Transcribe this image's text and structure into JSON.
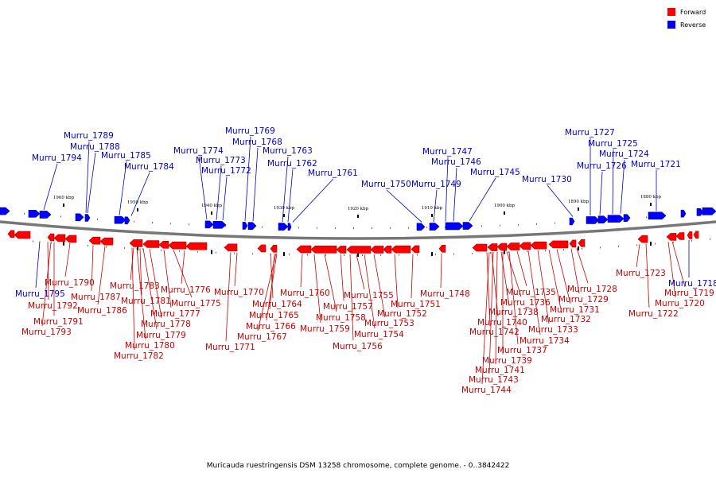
{
  "caption": "Muricauda ruestringensis DSM 13258 chromosome, complete genome. - 0..3842422",
  "legend": [
    {
      "label": "Forward",
      "color": "#ff0000"
    },
    {
      "label": "Reverse",
      "color": "#0000ff"
    }
  ],
  "ticks": [
    "1960 kbp",
    "1950 kbp",
    "1940 kbp",
    "1930 kbp",
    "1920 kbp",
    "1910 kbp",
    "1900 kbp",
    "1890 kbp",
    "1880 kbp"
  ],
  "reverse_genes": [
    {
      "name": "Murru_1794"
    },
    {
      "name": "Murru_1789"
    },
    {
      "name": "Murru_1788"
    },
    {
      "name": "Murru_1785"
    },
    {
      "name": "Murru_1784"
    },
    {
      "name": "Murru_1774"
    },
    {
      "name": "Murru_1773"
    },
    {
      "name": "Murru_1772"
    },
    {
      "name": "Murru_1769"
    },
    {
      "name": "Murru_1768"
    },
    {
      "name": "Murru_1763"
    },
    {
      "name": "Murru_1762"
    },
    {
      "name": "Murru_1761"
    },
    {
      "name": "Murru_1750"
    },
    {
      "name": "Murru_1749"
    },
    {
      "name": "Murru_1747"
    },
    {
      "name": "Murru_1746"
    },
    {
      "name": "Murru_1745"
    },
    {
      "name": "Murru_1730"
    },
    {
      "name": "Murru_1727"
    },
    {
      "name": "Murru_1726"
    },
    {
      "name": "Murru_1725"
    },
    {
      "name": "Murru_1724"
    },
    {
      "name": "Murru_1721"
    },
    {
      "name": "Murru_1795"
    },
    {
      "name": "Murru_1718"
    }
  ],
  "forward_genes": [
    {
      "name": "Murru_1790"
    },
    {
      "name": "Murru_1792"
    },
    {
      "name": "Murru_1791"
    },
    {
      "name": "Murru_1793"
    },
    {
      "name": "Murru_1787"
    },
    {
      "name": "Murru_1786"
    },
    {
      "name": "Murru_1783"
    },
    {
      "name": "Murru_1781"
    },
    {
      "name": "Murru_1776"
    },
    {
      "name": "Murru_1775"
    },
    {
      "name": "Murru_1777"
    },
    {
      "name": "Murru_1778"
    },
    {
      "name": "Murru_1779"
    },
    {
      "name": "Murru_1780"
    },
    {
      "name": "Murru_1782"
    },
    {
      "name": "Murru_1770"
    },
    {
      "name": "Murru_1771"
    },
    {
      "name": "Murru_1764"
    },
    {
      "name": "Murru_1765"
    },
    {
      "name": "Murru_1766"
    },
    {
      "name": "Murru_1767"
    },
    {
      "name": "Murru_1760"
    },
    {
      "name": "Murru_1757"
    },
    {
      "name": "Murru_1758"
    },
    {
      "name": "Murru_1759"
    },
    {
      "name": "Murru_1755"
    },
    {
      "name": "Murru_1753"
    },
    {
      "name": "Murru_1754"
    },
    {
      "name": "Murru_1756"
    },
    {
      "name": "Murru_1751"
    },
    {
      "name": "Murru_1752"
    },
    {
      "name": "Murru_1748"
    },
    {
      "name": "Murru_1735"
    },
    {
      "name": "Murru_1736"
    },
    {
      "name": "Murru_1738"
    },
    {
      "name": "Murru_1740"
    },
    {
      "name": "Murru_1742"
    },
    {
      "name": "Murru_1733"
    },
    {
      "name": "Murru_1734"
    },
    {
      "name": "Murru_1737"
    },
    {
      "name": "Murru_1739"
    },
    {
      "name": "Murru_1741"
    },
    {
      "name": "Murru_1743"
    },
    {
      "name": "Murru_1744"
    },
    {
      "name": "Murru_1728"
    },
    {
      "name": "Murru_1729"
    },
    {
      "name": "Murru_1731"
    },
    {
      "name": "Murru_1732"
    },
    {
      "name": "Murru_1723"
    },
    {
      "name": "Murru_1719"
    },
    {
      "name": "Murru_1720"
    },
    {
      "name": "Murru_1722"
    }
  ]
}
